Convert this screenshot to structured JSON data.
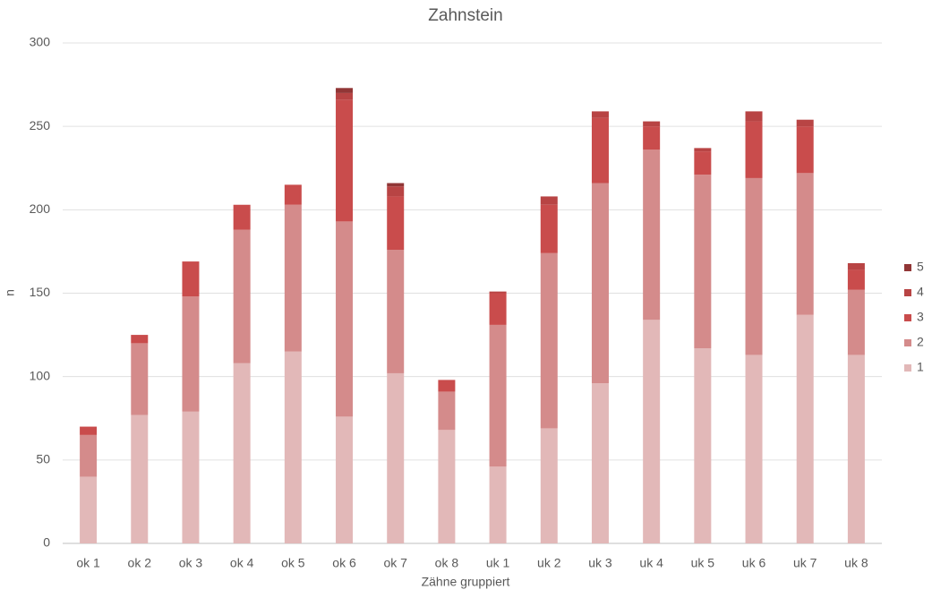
{
  "chart_data": {
    "type": "stacked_bar",
    "title": "Zahnstein",
    "x_label": "Zähne gruppiert",
    "y_label": "n",
    "categories": [
      "ok 1",
      "ok 2",
      "ok 3",
      "ok 4",
      "ok 5",
      "ok 6",
      "ok 7",
      "ok 8",
      "uk 1",
      "uk 2",
      "uk 3",
      "uk 4",
      "uk 5",
      "uk 6",
      "uk 7",
      "uk 8"
    ],
    "series": [
      {
        "name": "1",
        "color": "#e2b8b8",
        "values": [
          40,
          77,
          79,
          108,
          115,
          76,
          102,
          68,
          46,
          69,
          96,
          134,
          117,
          113,
          137,
          113
        ]
      },
      {
        "name": "2",
        "color": "#d48b8b",
        "values": [
          25,
          43,
          69,
          80,
          88,
          117,
          74,
          23,
          85,
          105,
          120,
          102,
          104,
          106,
          85,
          39
        ]
      },
      {
        "name": "3",
        "color": "#c94c4c",
        "values": [
          5,
          5,
          21,
          15,
          12,
          73,
          32,
          7,
          19,
          29,
          39,
          14,
          14,
          34,
          28,
          12
        ]
      },
      {
        "name": "4",
        "color": "#b84444",
        "values": [
          0,
          0,
          0,
          0,
          0,
          4,
          6,
          0,
          1,
          5,
          4,
          3,
          2,
          6,
          4,
          4
        ]
      },
      {
        "name": "5",
        "color": "#913636",
        "values": [
          0,
          0,
          0,
          0,
          0,
          3,
          2,
          0,
          0,
          0,
          0,
          0,
          0,
          0,
          0,
          0
        ]
      }
    ],
    "ylim": [
      0,
      300
    ],
    "yticks": [
      0,
      50,
      100,
      150,
      200,
      250,
      300
    ],
    "grid": true,
    "legend": "right"
  }
}
